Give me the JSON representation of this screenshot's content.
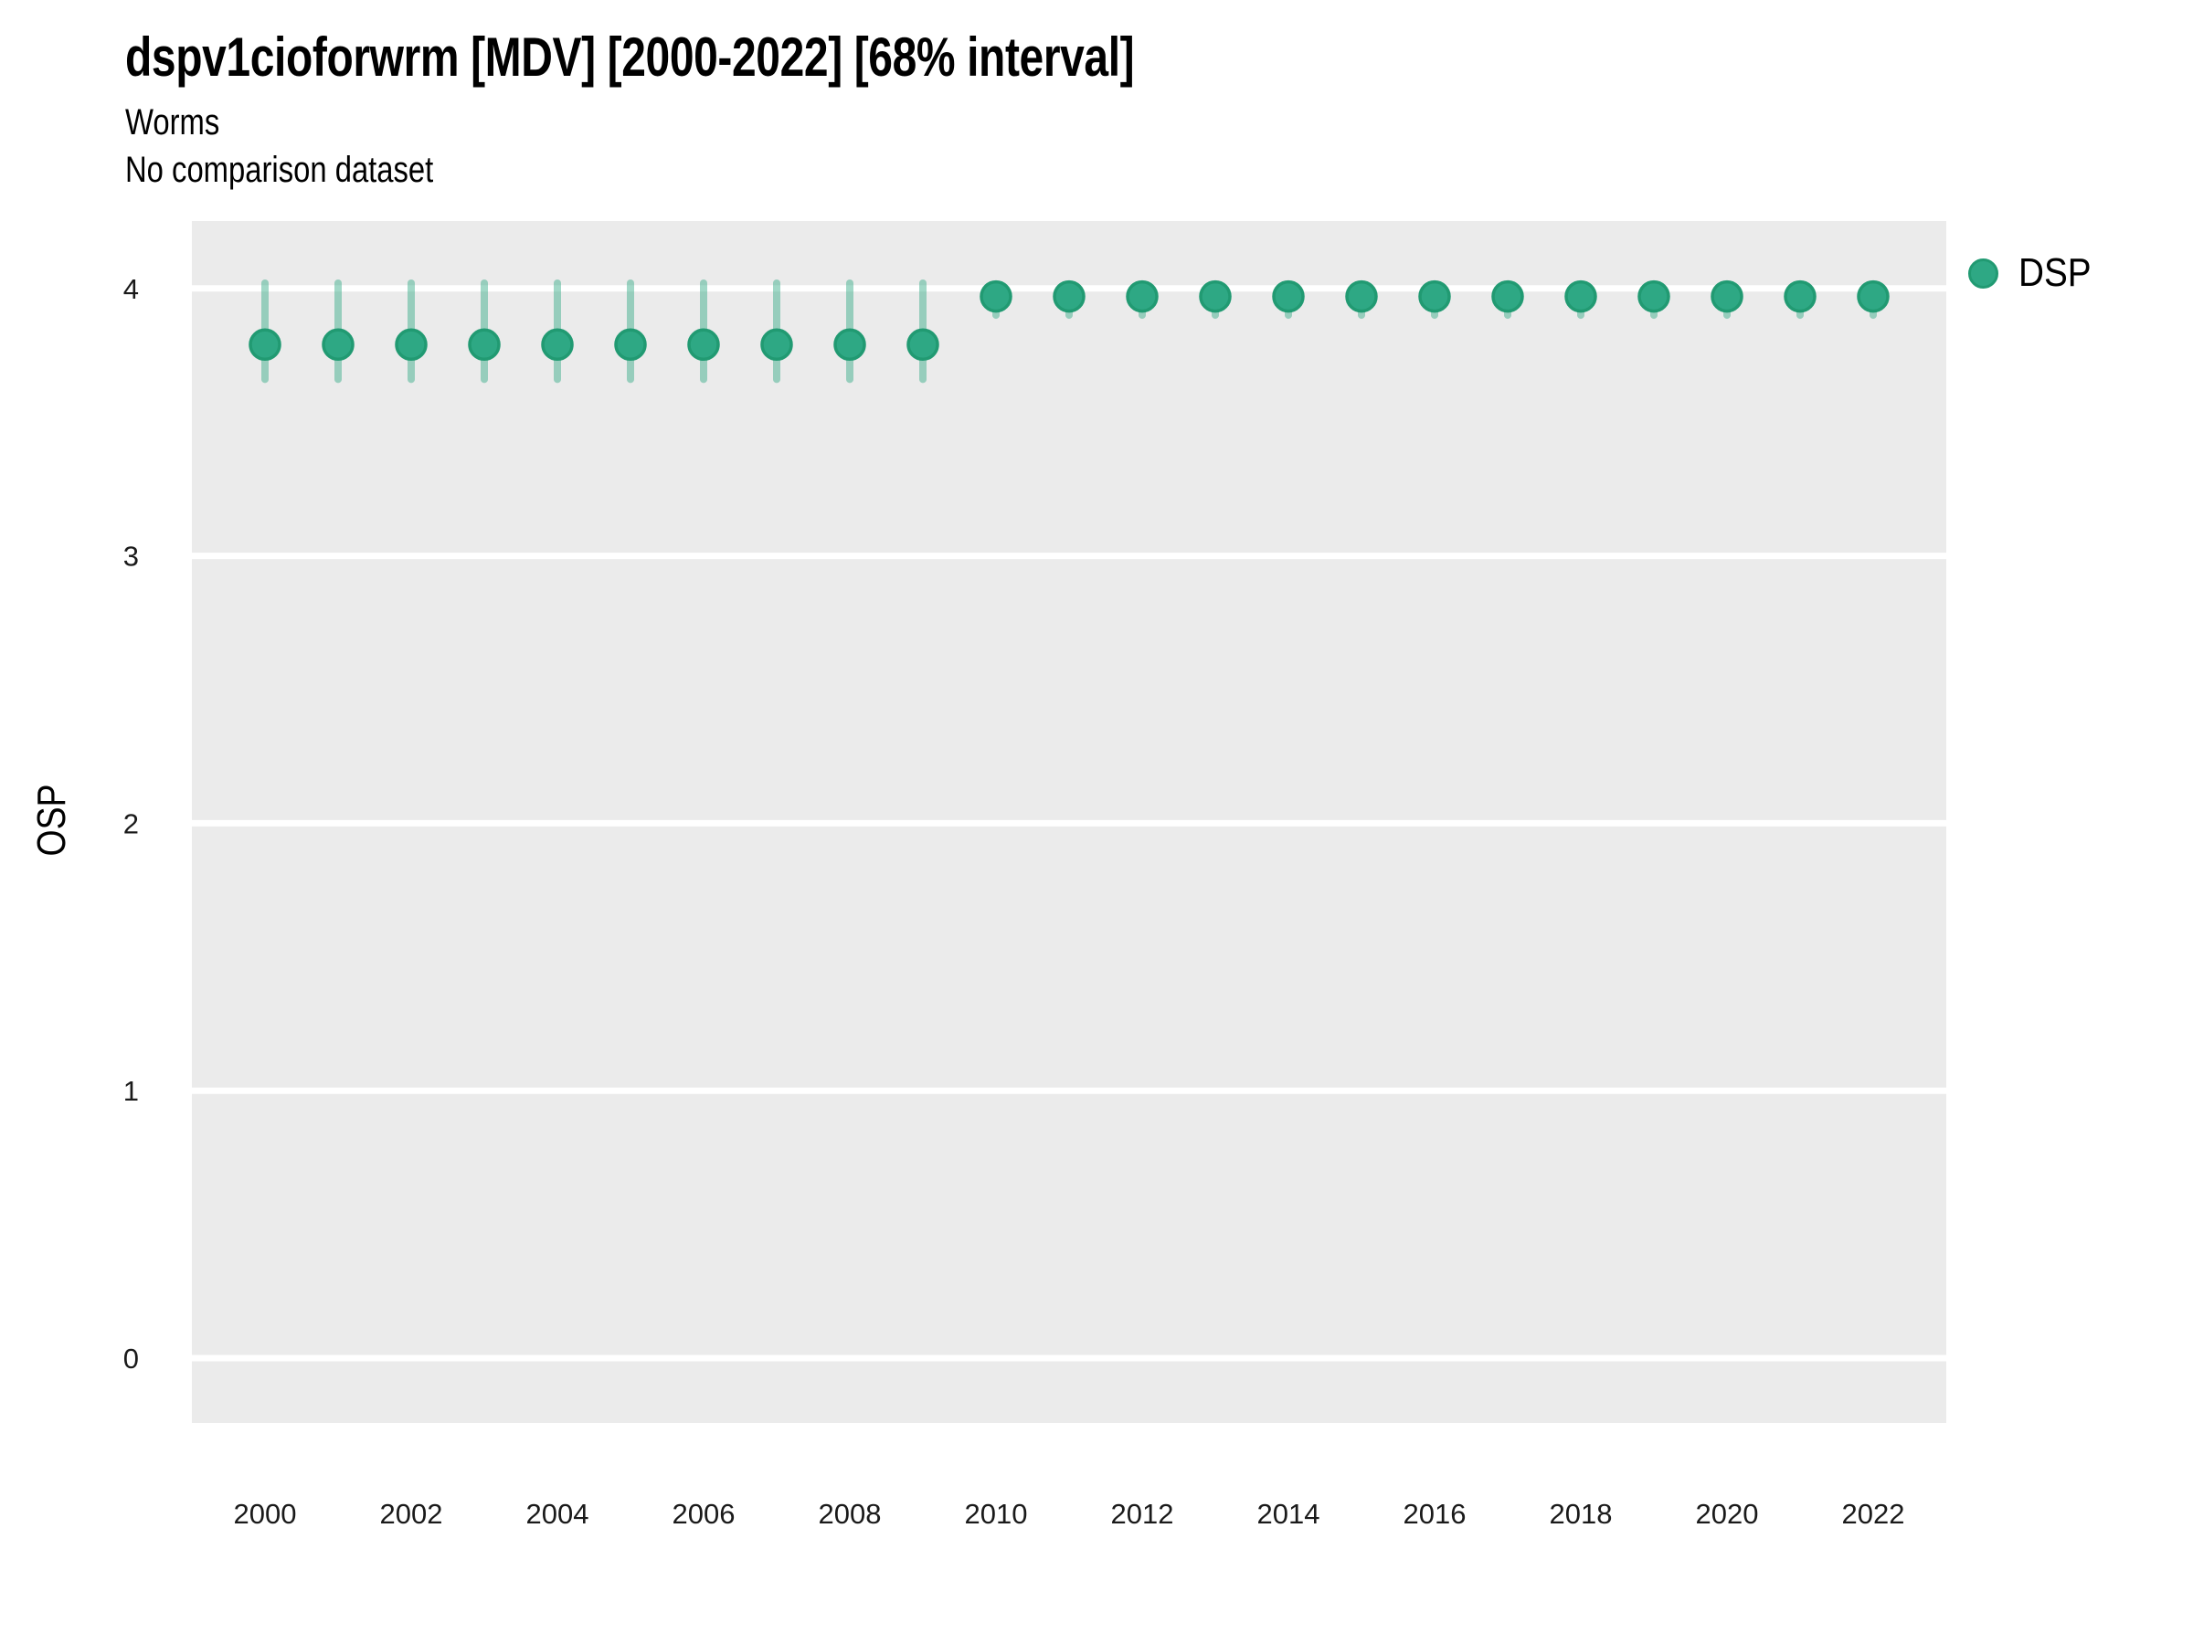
{
  "header": {
    "title": "dspv1cioforwrm [MDV] [2000-2022] [68% interval]",
    "subtitle_line1": "Worms",
    "subtitle_line2": "No comparison dataset"
  },
  "legend": {
    "label": "DSP",
    "marker_color": "#2EA884"
  },
  "axes": {
    "y_label": "OSP",
    "x_label": ""
  },
  "colors": {
    "panel_background": "#EBEBEB",
    "gridline": "#FFFFFF",
    "point_fill": "#2EA884",
    "point_stroke": "#219A72",
    "errorbar": "rgba(46,168,131,0.45)",
    "tick_text": "#1a1a1a"
  },
  "chart_data": {
    "type": "scatter",
    "title": "dspv1cioforwrm [MDV] [2000-2022] [68% interval]",
    "subtitle": [
      "Worms",
      "No comparison dataset"
    ],
    "xlabel": "",
    "ylabel": "OSP",
    "ylim": [
      -0.25,
      4.25
    ],
    "xlim": [
      1999,
      2023
    ],
    "grid": "major-horizontal-white-on-gray",
    "legend_position": "right",
    "interval": "68%",
    "y_ticks": [
      0,
      1,
      2,
      3,
      4
    ],
    "y_tick_labels": [
      "0",
      "1",
      "2",
      "3",
      "4"
    ],
    "x_ticks": [
      2000,
      2002,
      2004,
      2006,
      2008,
      2010,
      2012,
      2014,
      2016,
      2018,
      2020,
      2022
    ],
    "x_tick_labels": [
      "2000",
      "2002",
      "2004",
      "2006",
      "2008",
      "2010",
      "2012",
      "2014",
      "2016",
      "2018",
      "2020",
      "2022"
    ],
    "series": [
      {
        "name": "DSP",
        "x": [
          2000,
          2001,
          2002,
          2003,
          2004,
          2005,
          2006,
          2007,
          2008,
          2009,
          2010,
          2011,
          2012,
          2013,
          2014,
          2015,
          2016,
          2017,
          2018,
          2019,
          2020,
          2021,
          2022
        ],
        "y": [
          3.79,
          3.79,
          3.79,
          3.79,
          3.79,
          3.79,
          3.79,
          3.79,
          3.79,
          3.79,
          3.97,
          3.97,
          3.97,
          3.97,
          3.97,
          3.97,
          3.97,
          3.97,
          3.97,
          3.97,
          3.97,
          3.97,
          3.97
        ],
        "y_lo": [
          3.66,
          3.66,
          3.66,
          3.66,
          3.66,
          3.66,
          3.66,
          3.66,
          3.66,
          3.66,
          3.9,
          3.9,
          3.9,
          3.9,
          3.9,
          3.9,
          3.9,
          3.9,
          3.9,
          3.9,
          3.9,
          3.9,
          3.9
        ],
        "y_hi": [
          4.02,
          4.02,
          4.02,
          4.02,
          4.02,
          4.02,
          4.02,
          4.02,
          4.02,
          4.02,
          4.0,
          4.0,
          4.0,
          4.0,
          4.0,
          4.0,
          4.0,
          4.0,
          4.0,
          4.0,
          4.0,
          4.0,
          4.0
        ]
      }
    ]
  }
}
